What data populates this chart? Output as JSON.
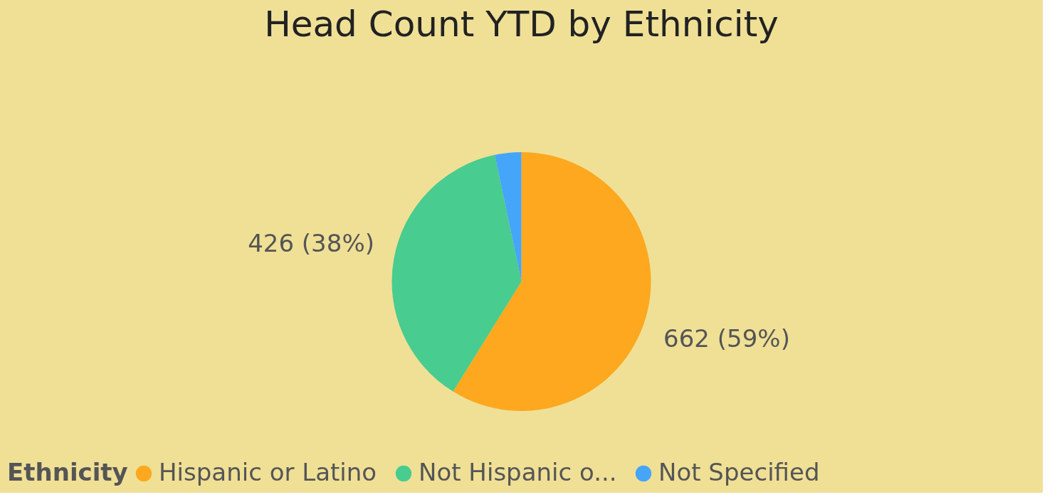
{
  "chart_data": {
    "type": "pie",
    "title": "Head Count YTD by Ethnicity",
    "legend_title": "Ethnicity",
    "categories": [
      "Hispanic or Latino",
      "Not Hispanic o...",
      "Not Specified"
    ],
    "values": [
      662,
      426,
      37
    ],
    "colors": [
      "#fda81f",
      "#48cc90",
      "#45a5f8"
    ],
    "value_labels": [
      "662 (59%)",
      "426 (38%)",
      null
    ],
    "legend": "bottom"
  }
}
